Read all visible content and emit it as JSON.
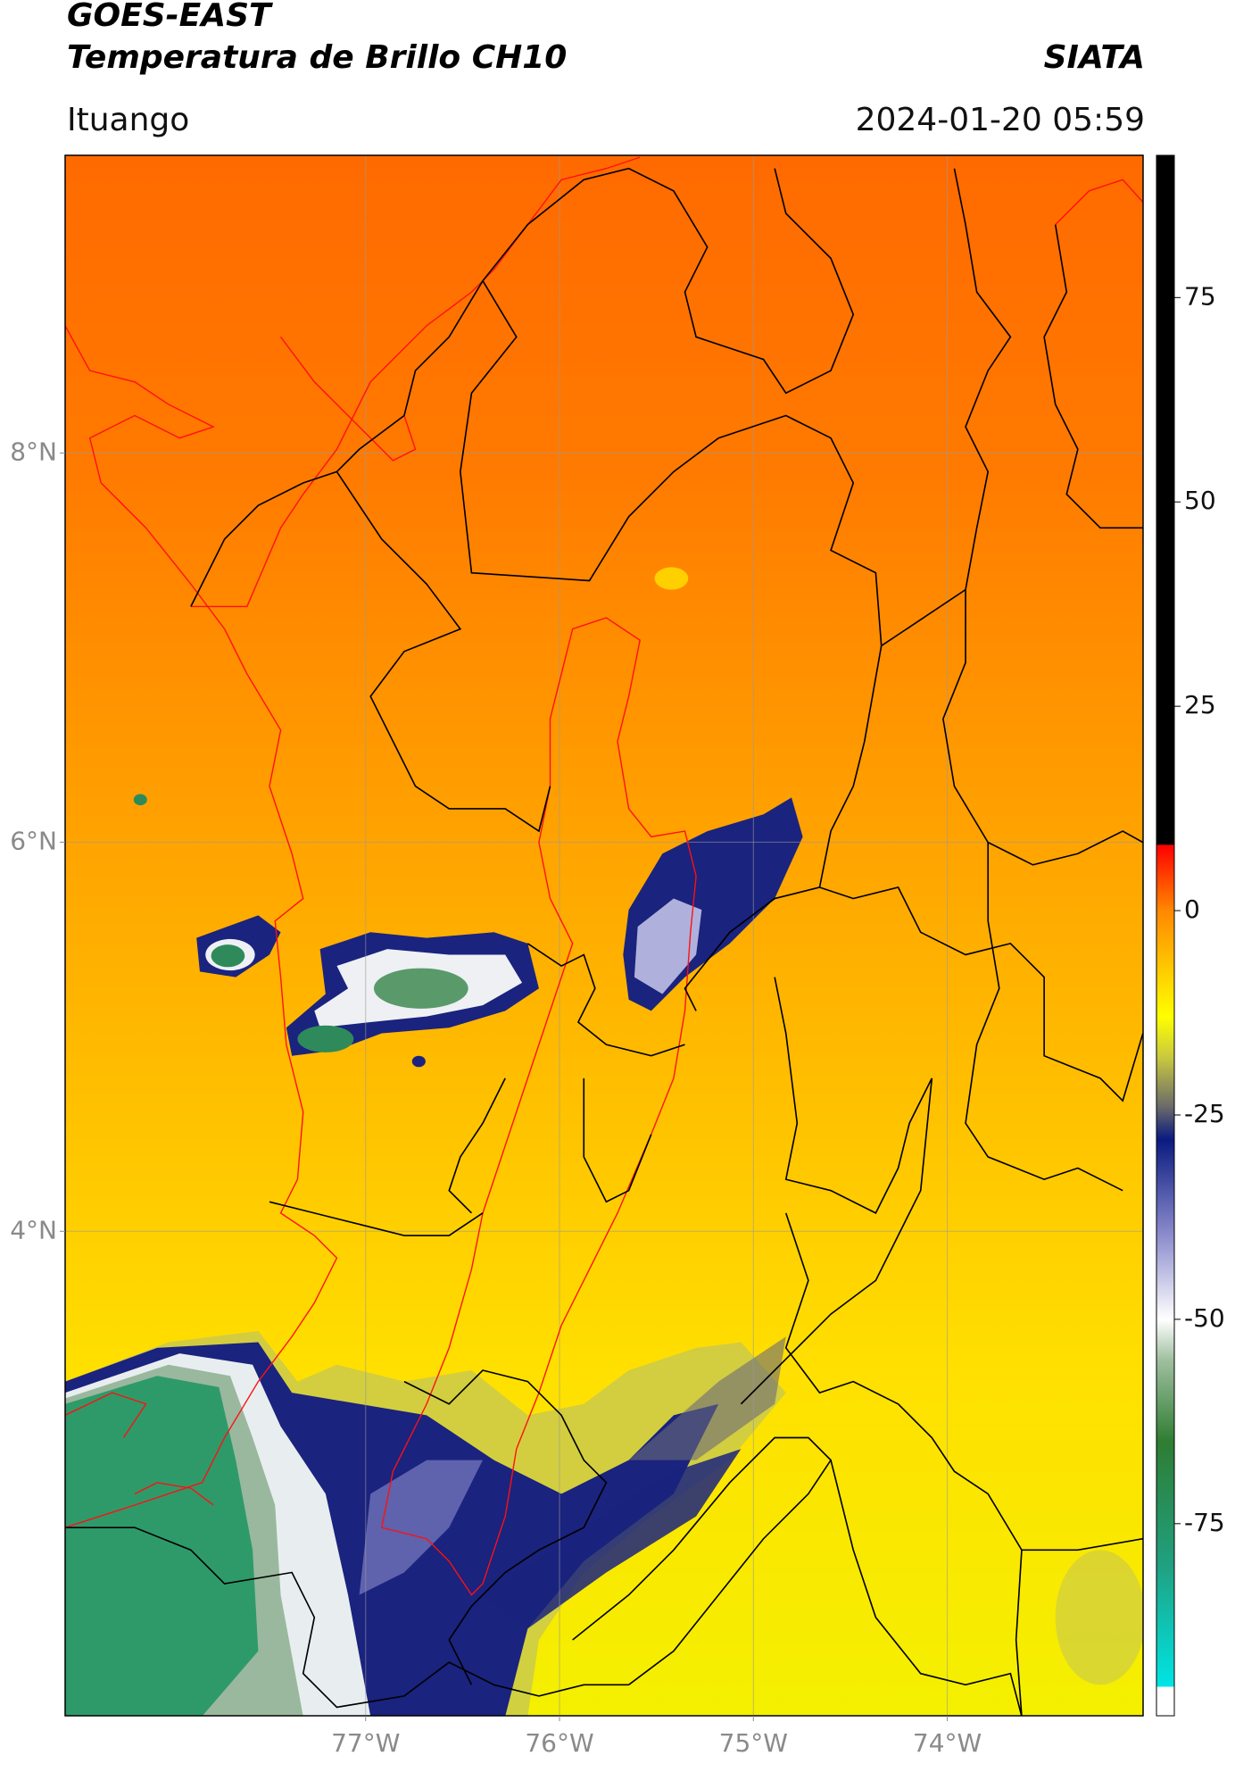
{
  "chart_data": {
    "type": "map",
    "title": "GOES-EAST",
    "subtitle": "Temperatura de Brillo CH10",
    "source": "SIATA",
    "location": "Ituango",
    "datetime": "2024-01-20 05:59",
    "xlim": [
      -78.55,
      -72.99
    ],
    "ylim": [
      1.51,
      9.53
    ],
    "xticks": [
      {
        "value": -77,
        "label": "77°W"
      },
      {
        "value": -76,
        "label": "76°W"
      },
      {
        "value": -75,
        "label": "75°W"
      },
      {
        "value": -74,
        "label": "74°W"
      }
    ],
    "yticks": [
      {
        "value": 8,
        "label": "8°N"
      },
      {
        "value": 6,
        "label": "6°N"
      },
      {
        "value": 4,
        "label": "4°N"
      }
    ],
    "grid": true,
    "colorbar": {
      "lim": [
        -98.5,
        92.4
      ],
      "ticks": [
        -75,
        -50,
        -25,
        0,
        25,
        50,
        75
      ],
      "colormap": [
        {
          "value": -98.5,
          "color": "#ffffff"
        },
        {
          "value": -95,
          "color": "#ffffff"
        },
        {
          "value": -94.9,
          "color": "#00e5e5"
        },
        {
          "value": -80,
          "color": "#20a080"
        },
        {
          "value": -65,
          "color": "#2e7d32"
        },
        {
          "value": -55,
          "color": "#9fbf9f"
        },
        {
          "value": -50,
          "color": "#ffffff"
        },
        {
          "value": -40,
          "color": "#8f8fcf"
        },
        {
          "value": -28,
          "color": "#0a1a80"
        },
        {
          "value": -24,
          "color": "#6a6a6a"
        },
        {
          "value": -18,
          "color": "#c8c840"
        },
        {
          "value": -13,
          "color": "#ffff00"
        },
        {
          "value": 0,
          "color": "#ff8800"
        },
        {
          "value": 8,
          "color": "#ff0000"
        },
        {
          "value": 8.1,
          "color": "#000000"
        },
        {
          "value": 92.4,
          "color": "#000000"
        }
      ]
    }
  }
}
